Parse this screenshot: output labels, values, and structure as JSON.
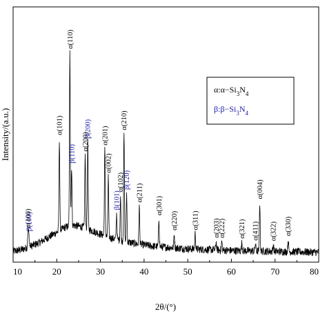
{
  "chart_data": {
    "type": "line",
    "xlabel": "2θ/(°)",
    "ylabel": "Intensity/(a.u.)",
    "xlim": [
      10,
      80
    ],
    "xticks": [
      10,
      20,
      30,
      40,
      50,
      60,
      70,
      80
    ],
    "grid": false,
    "legend": {
      "placement": "top-right",
      "entries": [
        {
          "symbol": "α:",
          "text": "α−Si3N4",
          "color": "#000000"
        },
        {
          "symbol": "β:",
          "text": "β−Si3N4",
          "color": "#1a1aa6"
        }
      ]
    },
    "colors": {
      "alpha": "#000000",
      "beta": "#1a1aa6",
      "line": "#000000"
    },
    "background_profile": [
      [
        10,
        0.03
      ],
      [
        12,
        0.04
      ],
      [
        14,
        0.06
      ],
      [
        16,
        0.08
      ],
      [
        18,
        0.11
      ],
      [
        20,
        0.14
      ],
      [
        22,
        0.17
      ],
      [
        24,
        0.18
      ],
      [
        26,
        0.17
      ],
      [
        28,
        0.15
      ],
      [
        30,
        0.13
      ],
      [
        32,
        0.11
      ],
      [
        35,
        0.09
      ],
      [
        38,
        0.075
      ],
      [
        42,
        0.06
      ],
      [
        50,
        0.045
      ],
      [
        60,
        0.035
      ],
      [
        70,
        0.03
      ],
      [
        80,
        0.025
      ]
    ],
    "peaks": [
      {
        "x": 13.4,
        "y": 0.09,
        "phase": "alpha",
        "label": "α(100)"
      },
      {
        "x": 13.6,
        "y": 0.07,
        "phase": "beta",
        "label": "β(100)"
      },
      {
        "x": 20.6,
        "y": 0.53,
        "phase": "alpha",
        "label": "α(101)"
      },
      {
        "x": 23.0,
        "y": 1.0,
        "phase": "alpha",
        "label": "α(110)"
      },
      {
        "x": 23.4,
        "y": 0.34,
        "phase": "beta",
        "label": "β(110)"
      },
      {
        "x": 26.5,
        "y": 0.42,
        "phase": "alpha",
        "label": "α(200)"
      },
      {
        "x": 27.1,
        "y": 0.5,
        "phase": "beta",
        "label": "β(200)"
      },
      {
        "x": 31.0,
        "y": 0.5,
        "phase": "alpha",
        "label": "α(201)"
      },
      {
        "x": 31.8,
        "y": 0.35,
        "phase": "alpha",
        "label": "α(002)"
      },
      {
        "x": 33.7,
        "y": 0.15,
        "phase": "beta",
        "label": "β(101)"
      },
      {
        "x": 34.6,
        "y": 0.26,
        "phase": "alpha",
        "label": "α(102)"
      },
      {
        "x": 35.4,
        "y": 0.62,
        "phase": "alpha",
        "label": "α(210)"
      },
      {
        "x": 36.0,
        "y": 0.28,
        "phase": "beta",
        "label": "β(120)"
      },
      {
        "x": 38.9,
        "y": 0.22,
        "phase": "alpha",
        "label": "α(211)"
      },
      {
        "x": 43.4,
        "y": 0.16,
        "phase": "alpha",
        "label": "α(301)"
      },
      {
        "x": 46.9,
        "y": 0.08,
        "phase": "alpha",
        "label": "α(220)"
      },
      {
        "x": 51.7,
        "y": 0.09,
        "phase": "alpha",
        "label": "α(311)"
      },
      {
        "x": 56.5,
        "y": 0.05,
        "phase": "alpha",
        "label": "α(203)"
      },
      {
        "x": 57.8,
        "y": 0.05,
        "phase": "alpha",
        "label": "α(222)"
      },
      {
        "x": 62.4,
        "y": 0.05,
        "phase": "alpha",
        "label": "α(321)"
      },
      {
        "x": 65.5,
        "y": 0.04,
        "phase": "alpha",
        "label": "α(411)"
      },
      {
        "x": 66.5,
        "y": 0.28,
        "phase": "alpha",
        "label": "α(004)"
      },
      {
        "x": 69.6,
        "y": 0.04,
        "phase": "alpha",
        "label": "α(322)"
      },
      {
        "x": 73.0,
        "y": 0.07,
        "phase": "alpha",
        "label": "α(330)"
      }
    ]
  }
}
